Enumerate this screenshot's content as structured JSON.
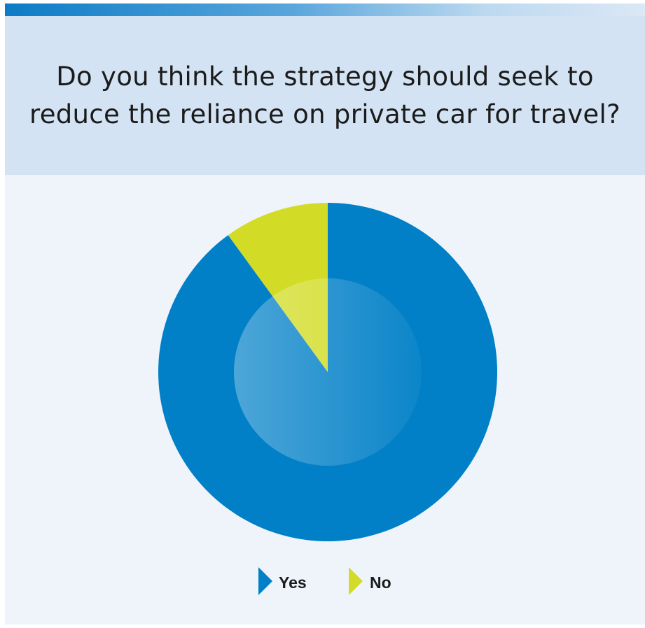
{
  "title": "Do you think the strategy should seek to reduce the reliance on private car for travel?",
  "chart_data": {
    "type": "pie",
    "title": "Do you think the strategy should seek to reduce the reliance on private car for travel?",
    "categories": [
      "Yes",
      "No"
    ],
    "values": [
      90,
      10
    ],
    "unit": "%",
    "colors": [
      "#0180c7",
      "#d2dc26"
    ],
    "legend": "bottom"
  }
}
